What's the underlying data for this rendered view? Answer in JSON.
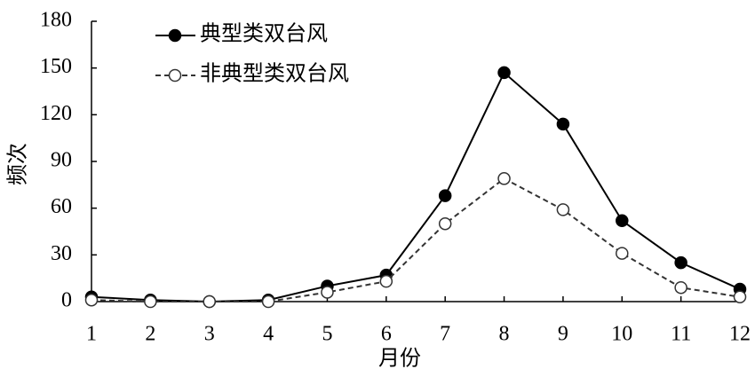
{
  "chart_data": {
    "type": "line",
    "x_label": "月份",
    "y_label": "频次",
    "x": [
      1,
      2,
      3,
      4,
      5,
      6,
      7,
      8,
      9,
      10,
      11,
      12
    ],
    "xlim": [
      1,
      12
    ],
    "xticks": [
      1,
      2,
      3,
      4,
      5,
      6,
      7,
      8,
      9,
      10,
      11,
      12
    ],
    "ylim": [
      0,
      180
    ],
    "yticks": [
      0,
      30,
      60,
      90,
      120,
      150,
      180
    ],
    "legend": "top-left",
    "series": [
      {
        "name": "典型类双台风",
        "color": "#000000",
        "marker": "filled",
        "dash": "solid",
        "values": [
          3,
          1,
          0,
          1,
          10,
          17,
          68,
          147,
          114,
          52,
          25,
          8
        ]
      },
      {
        "name": "非典型类双台风",
        "color": "#333333",
        "marker": "open",
        "dash": "dashed",
        "values": [
          1,
          0,
          0,
          0,
          6,
          13,
          50,
          79,
          59,
          31,
          9,
          3
        ]
      }
    ]
  }
}
